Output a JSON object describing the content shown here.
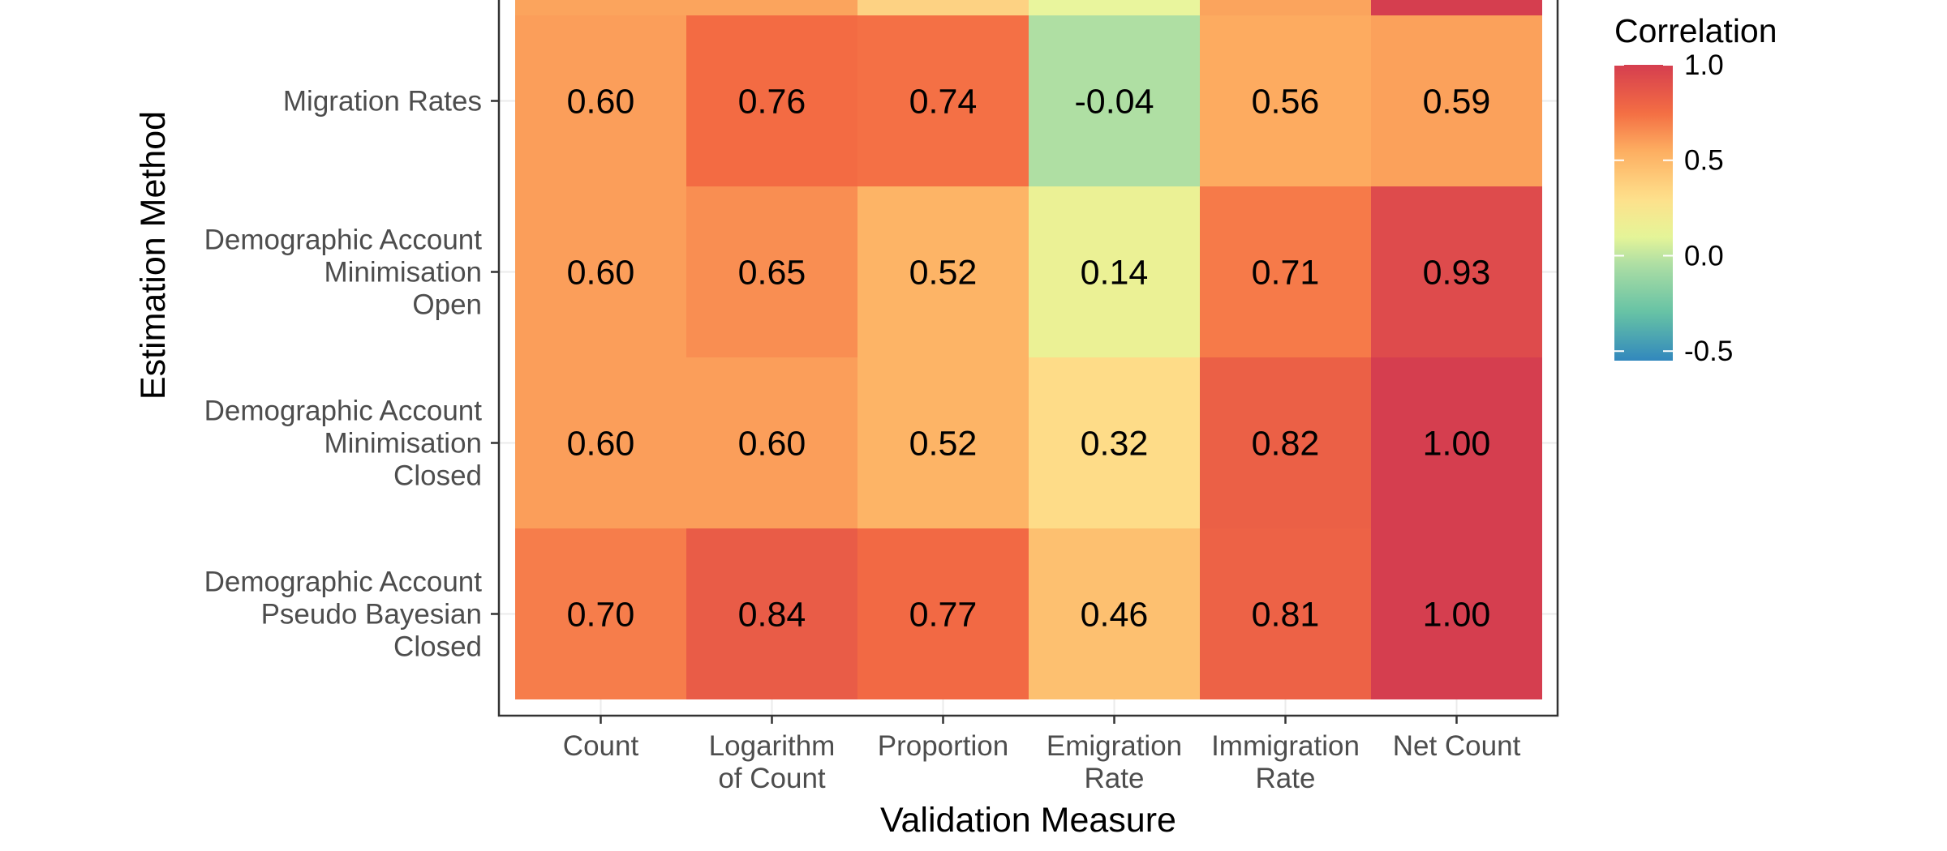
{
  "chart_data": {
    "type": "heatmap",
    "title": "",
    "xlabel": "Validation Measure",
    "ylabel": "Estimation Method",
    "x_categories": [
      [
        "Count"
      ],
      [
        "Logarithm",
        "of Count"
      ],
      [
        "Proportion"
      ],
      [
        "Emigration",
        "Rate"
      ],
      [
        "Immigration",
        "Rate"
      ],
      [
        "Net Count"
      ]
    ],
    "y_categories": [
      [
        "Migration Rates"
      ],
      [
        "Demographic Account",
        "Minimisation",
        "Open"
      ],
      [
        "Demographic Account",
        "Minimisation",
        "Closed"
      ],
      [
        "Demographic Account",
        "Pseudo Bayesian",
        "Closed"
      ]
    ],
    "values": [
      [
        0.6,
        0.76,
        0.74,
        -0.04,
        0.56,
        0.59
      ],
      [
        0.6,
        0.65,
        0.52,
        0.14,
        0.71,
        0.93
      ],
      [
        0.6,
        0.6,
        0.52,
        0.32,
        0.82,
        1.0
      ],
      [
        0.7,
        0.84,
        0.77,
        0.46,
        0.81,
        1.0
      ]
    ],
    "cell_labels": [
      [
        "0.60",
        "0.76",
        "0.74",
        "-0.04",
        "0.56",
        "0.59"
      ],
      [
        "0.60",
        "0.65",
        "0.52",
        "0.14",
        "0.71",
        "0.93"
      ],
      [
        "0.60",
        "0.60",
        "0.52",
        "0.32",
        "0.82",
        "1.00"
      ],
      [
        "0.70",
        "0.84",
        "0.77",
        "0.46",
        "0.81",
        "1.00"
      ]
    ],
    "partial_top_row_colors": [
      "#fba45d",
      "#fba45d",
      "#fdd283",
      "#e9f59d",
      "#fba45d",
      "#d53e4f"
    ],
    "legend": {
      "title": "Correlation",
      "ticks": [
        "1.0",
        "0.5",
        "0.0",
        "-0.5"
      ],
      "tick_values": [
        1.0,
        0.5,
        0.0,
        -0.5
      ],
      "range": [
        -0.55,
        1.0
      ],
      "placement": "right"
    },
    "color_scale": {
      "stops": [
        {
          "v": -0.55,
          "c": "#3288bd"
        },
        {
          "v": -0.3,
          "c": "#66c2a5"
        },
        {
          "v": -0.05,
          "c": "#abdda4"
        },
        {
          "v": 0.1,
          "c": "#e6f598"
        },
        {
          "v": 0.3,
          "c": "#fee08b"
        },
        {
          "v": 0.55,
          "c": "#fdae61"
        },
        {
          "v": 0.75,
          "c": "#f46d43"
        },
        {
          "v": 1.0,
          "c": "#d53e4f"
        }
      ]
    },
    "grid": true
  }
}
